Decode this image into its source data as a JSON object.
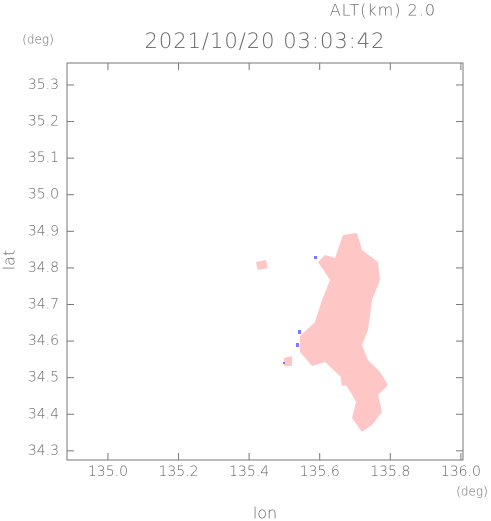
{
  "chart_data": {
    "type": "map",
    "subtitle": "ALT(km) 2.0",
    "title": "2021/10/20 03:03:42",
    "y_unit": "(deg)",
    "x_unit": "(deg)",
    "xlabel": "lon",
    "ylabel": "lat",
    "xlim": [
      134.884,
      136.006
    ],
    "ylim": [
      34.275,
      35.36
    ],
    "xticks": [
      {
        "value": 135.0,
        "label": "135.0"
      },
      {
        "value": 135.2,
        "label": "135.2"
      },
      {
        "value": 135.4,
        "label": "135.4"
      },
      {
        "value": 135.6,
        "label": "135.6"
      },
      {
        "value": 135.8,
        "label": "135.8"
      },
      {
        "value": 136.0,
        "label": "136.0"
      }
    ],
    "yticks": [
      {
        "value": 34.3,
        "label": "34.3"
      },
      {
        "value": 34.4,
        "label": "34.4"
      },
      {
        "value": 34.5,
        "label": "34.5"
      },
      {
        "value": 34.6,
        "label": "34.6"
      },
      {
        "value": 34.7,
        "label": "34.7"
      },
      {
        "value": 34.8,
        "label": "34.8"
      },
      {
        "value": 34.9,
        "label": "34.9"
      },
      {
        "value": 35.0,
        "label": "35.0"
      },
      {
        "value": 35.1,
        "label": "35.1"
      },
      {
        "value": 35.2,
        "label": "35.2"
      },
      {
        "value": 35.3,
        "label": "35.3"
      }
    ]
  }
}
